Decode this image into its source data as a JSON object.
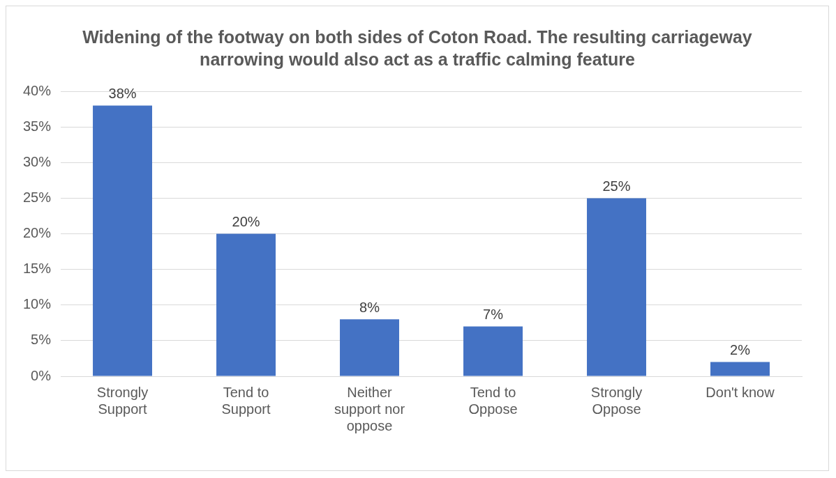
{
  "chart_data": {
    "type": "bar",
    "title": "Widening of the footway on both sides of Coton Road. The resulting carriageway narrowing would also act as a traffic calming feature",
    "categories": [
      "Strongly Support",
      "Tend to Support",
      "Neither support nor oppose",
      "Tend to Oppose",
      "Strongly Oppose",
      "Don't know"
    ],
    "values": [
      38,
      20,
      8,
      7,
      25,
      2
    ],
    "value_labels": [
      "38%",
      "20%",
      "8%",
      "7%",
      "25%",
      "2%"
    ],
    "color": "#4472c4",
    "ylim": [
      0,
      40
    ],
    "yticks": [
      {
        "value": 0,
        "label": "0%"
      },
      {
        "value": 5,
        "label": "5%"
      },
      {
        "value": 10,
        "label": "10%"
      },
      {
        "value": 15,
        "label": "15%"
      },
      {
        "value": 20,
        "label": "20%"
      },
      {
        "value": 25,
        "label": "25%"
      },
      {
        "value": 30,
        "label": "30%"
      },
      {
        "value": 35,
        "label": "35%"
      },
      {
        "value": 40,
        "label": "40%"
      }
    ],
    "grid": "y",
    "legend": false
  }
}
